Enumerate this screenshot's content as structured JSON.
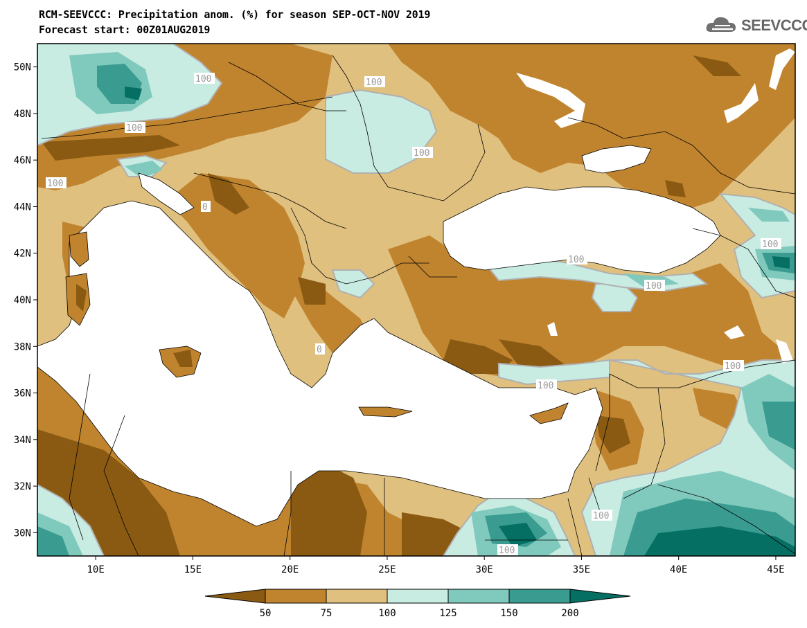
{
  "title": {
    "line1": "RCM-SEEVCCC: Precipitation anom. (%) for season SEP-OCT-NOV 2019",
    "line2": "Forecast start: 00Z01AUG2019"
  },
  "logo": {
    "icon": "cloud-icon",
    "text": "SEEVCCC"
  },
  "map": {
    "lat_labels": [
      "50N",
      "48N",
      "46N",
      "44N",
      "42N",
      "40N",
      "38N",
      "36N",
      "34N",
      "32N",
      "30N"
    ],
    "lon_labels": [
      "10E",
      "15E",
      "20E",
      "25E",
      "30E",
      "35E",
      "40E",
      "45E"
    ],
    "lat_values": [
      50,
      48,
      46,
      44,
      42,
      40,
      38,
      36,
      34,
      32,
      30
    ],
    "lon_values": [
      10,
      15,
      20,
      25,
      30,
      35,
      40,
      45
    ],
    "lon_range": [
      7,
      46
    ],
    "lat_range": [
      29,
      51
    ],
    "contour_labels": [
      "100",
      "100",
      "100",
      "100",
      "100",
      "100",
      "100",
      "100",
      "100",
      "100",
      "100",
      "100",
      "0",
      "0"
    ]
  },
  "legend": {
    "boundaries": [
      "50",
      "75",
      "100",
      "125",
      "150",
      "200"
    ],
    "colors": [
      "#8b5a12",
      "#c0842f",
      "#e0c07e",
      "#c8ebe2",
      "#80c9bd",
      "#3a9c90",
      "#056f63"
    ]
  },
  "colors": {
    "land_base": "#e0c07e",
    "sea": "#ffffff",
    "contour_100": "#b0b0b0"
  }
}
